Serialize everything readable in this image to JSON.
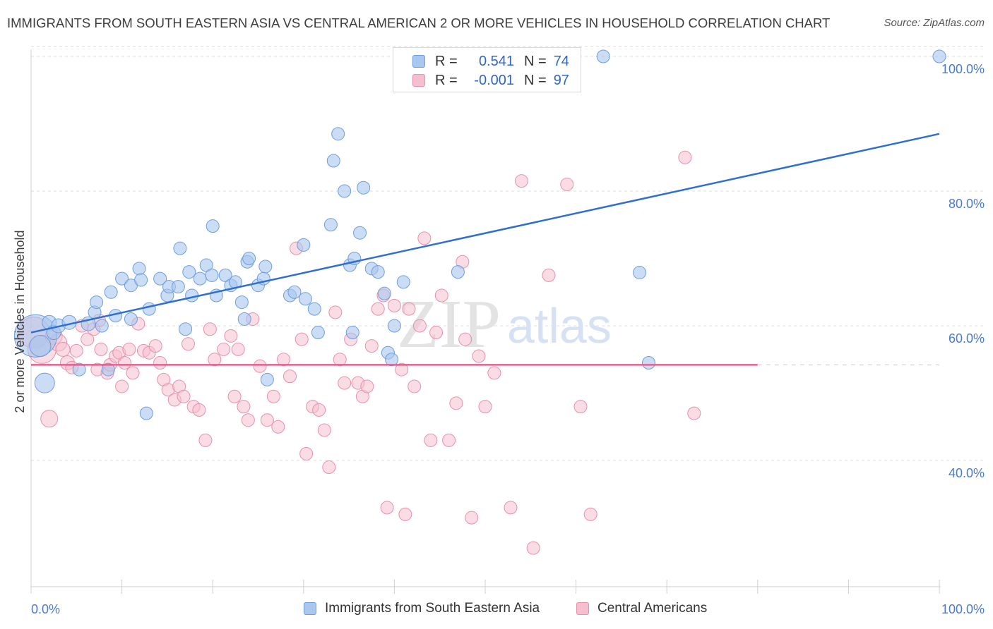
{
  "header": {
    "title": "IMMIGRANTS FROM SOUTH EASTERN ASIA VS CENTRAL AMERICAN 2 OR MORE VEHICLES IN HOUSEHOLD CORRELATION CHART",
    "source": "Source: ZipAtlas.com"
  },
  "legend": {
    "rows": [
      {
        "r_label": "R =",
        "r_value": "0.541",
        "n_label": "N =",
        "n_value": "74"
      },
      {
        "r_label": "R =",
        "r_value": "-0.001",
        "n_label": "N =",
        "n_value": "97"
      }
    ]
  },
  "bottom_legend": {
    "blue_label": "Immigrants from South Eastern Asia",
    "pink_label": "Central Americans"
  },
  "colors": {
    "blue_fill": "#a9c7ef",
    "blue_stroke": "#6d9de0",
    "blue_line": "#2f6fd0",
    "pink_fill": "#f6bfd0",
    "pink_stroke": "#ea8fac",
    "pink_line": "#e0628d",
    "tick_text": "#4a7bd0",
    "grid": "#dedede"
  },
  "watermark": {
    "zip": "ZIP",
    "atlas": "atlas"
  },
  "chart_data": {
    "type": "scatter",
    "title": "IMMIGRANTS FROM SOUTH EASTERN ASIA VS CENTRAL AMERICAN 2 OR MORE VEHICLES IN HOUSEHOLD CORRELATION CHART",
    "xlabel": "",
    "ylabel": "2 or more Vehicles in Household",
    "xlim": [
      0,
      100
    ],
    "ylim": [
      20,
      102
    ],
    "x_tick_labels": [
      "0.0%",
      "100.0%"
    ],
    "y_ticks": [
      40,
      60,
      80,
      100
    ],
    "y_tick_labels": [
      "40.0%",
      "60.0%",
      "80.0%",
      "100.0%"
    ],
    "grid": true,
    "legend_position": "top-center",
    "series": [
      {
        "name": "Immigrants from South Eastern Asia",
        "color": "#a9c7ef",
        "trend": {
          "x": [
            0,
            100
          ],
          "y": [
            59.0,
            88.5
          ]
        },
        "points": [
          [
            0.5,
            58.5
          ],
          [
            1.0,
            57.0
          ],
          [
            1.5,
            51.5
          ],
          [
            2.0,
            60.5
          ],
          [
            2.5,
            59.0
          ],
          [
            3.0,
            60.0
          ],
          [
            4.2,
            60.5
          ],
          [
            5.3,
            53.5
          ],
          [
            6.3,
            60.3
          ],
          [
            7.0,
            62.0
          ],
          [
            7.2,
            63.5
          ],
          [
            7.8,
            60.0
          ],
          [
            8.5,
            53.5
          ],
          [
            8.8,
            65.0
          ],
          [
            9.3,
            61.5
          ],
          [
            10.0,
            67.0
          ],
          [
            11.0,
            61.0
          ],
          [
            11.0,
            66.0
          ],
          [
            11.9,
            68.5
          ],
          [
            12.1,
            66.8
          ],
          [
            12.7,
            47.0
          ],
          [
            13.0,
            62.5
          ],
          [
            14.2,
            67.0
          ],
          [
            15.0,
            64.5
          ],
          [
            15.2,
            65.8
          ],
          [
            16.2,
            65.8
          ],
          [
            16.4,
            71.5
          ],
          [
            17.0,
            59.5
          ],
          [
            17.4,
            68.0
          ],
          [
            17.7,
            64.5
          ],
          [
            18.6,
            67.0
          ],
          [
            19.3,
            69.0
          ],
          [
            19.9,
            67.5
          ],
          [
            20.0,
            74.8
          ],
          [
            20.4,
            64.5
          ],
          [
            21.4,
            67.5
          ],
          [
            22.0,
            66.0
          ],
          [
            22.5,
            66.5
          ],
          [
            23.2,
            63.5
          ],
          [
            23.5,
            61.0
          ],
          [
            23.8,
            69.5
          ],
          [
            24.0,
            70.0
          ],
          [
            25.0,
            66.0
          ],
          [
            25.6,
            67.0
          ],
          [
            25.8,
            68.8
          ],
          [
            26.0,
            52.0
          ],
          [
            28.5,
            64.5
          ],
          [
            29.0,
            65.0
          ],
          [
            30.0,
            72.0
          ],
          [
            30.2,
            64.0
          ],
          [
            31.2,
            62.5
          ],
          [
            31.6,
            59.0
          ],
          [
            33.0,
            75.0
          ],
          [
            33.3,
            84.5
          ],
          [
            33.8,
            88.5
          ],
          [
            34.5,
            80.0
          ],
          [
            35.1,
            69.0
          ],
          [
            35.4,
            59.0
          ],
          [
            35.6,
            70.0
          ],
          [
            36.2,
            73.8
          ],
          [
            36.6,
            80.5
          ],
          [
            37.5,
            68.5
          ],
          [
            38.2,
            68.0
          ],
          [
            38.9,
            64.8
          ],
          [
            39.3,
            56.0
          ],
          [
            39.7,
            55.0
          ],
          [
            40.0,
            60.0
          ],
          [
            41.0,
            66.5
          ],
          [
            42.5,
            100.0
          ],
          [
            47.0,
            68.0
          ],
          [
            63.0,
            100.0
          ],
          [
            67.0,
            67.9
          ],
          [
            68.0,
            54.5
          ],
          [
            100.0,
            100.0
          ]
        ],
        "sizes": [
          30,
          15,
          14,
          10,
          10,
          10,
          10,
          9,
          10,
          9,
          9,
          9,
          9,
          9,
          9,
          9,
          9,
          9,
          9,
          9,
          9,
          9,
          9,
          9,
          9,
          9,
          9,
          9,
          9,
          9,
          9,
          9,
          9,
          9,
          9,
          9,
          9,
          9,
          9,
          9,
          9,
          9,
          9,
          9,
          9,
          9,
          9,
          9,
          9,
          9,
          9,
          9,
          9,
          9,
          9,
          9,
          9,
          9,
          9,
          9,
          9,
          9,
          9,
          9,
          9,
          9,
          9,
          9,
          9,
          9,
          9,
          9,
          9,
          9
        ]
      },
      {
        "name": "Central Americans",
        "color": "#f6bfd0",
        "trend": {
          "x": [
            0,
            80
          ],
          "y": [
            54.2,
            54.2
          ]
        },
        "dashed_extension": {
          "x": [
            80,
            100
          ],
          "y": [
            54.2,
            54.2
          ]
        },
        "points": [
          [
            0.3,
            59.0
          ],
          [
            1.2,
            56.5
          ],
          [
            2.0,
            46.2
          ],
          [
            2.5,
            58.5
          ],
          [
            3.0,
            57.5
          ],
          [
            3.5,
            56.5
          ],
          [
            4.0,
            54.5
          ],
          [
            4.5,
            53.8
          ],
          [
            5.0,
            56.3
          ],
          [
            5.6,
            60.0
          ],
          [
            6.2,
            58.0
          ],
          [
            6.9,
            59.5
          ],
          [
            7.3,
            53.5
          ],
          [
            7.5,
            60.8
          ],
          [
            7.7,
            56.5
          ],
          [
            8.4,
            53.0
          ],
          [
            8.7,
            54.2
          ],
          [
            9.3,
            55.5
          ],
          [
            9.7,
            56.0
          ],
          [
            10.0,
            51.0
          ],
          [
            10.3,
            54.5
          ],
          [
            10.8,
            56.5
          ],
          [
            11.2,
            53.0
          ],
          [
            11.8,
            60.3
          ],
          [
            12.4,
            56.3
          ],
          [
            13.0,
            56.0
          ],
          [
            13.7,
            57.0
          ],
          [
            14.2,
            54.5
          ],
          [
            14.6,
            52.0
          ],
          [
            15.1,
            50.5
          ],
          [
            15.8,
            49.0
          ],
          [
            16.3,
            51.0
          ],
          [
            16.8,
            49.5
          ],
          [
            17.3,
            57.3
          ],
          [
            17.9,
            48.0
          ],
          [
            18.5,
            47.5
          ],
          [
            19.2,
            43.0
          ],
          [
            19.7,
            59.5
          ],
          [
            20.2,
            55.0
          ],
          [
            21.2,
            56.5
          ],
          [
            22.0,
            58.5
          ],
          [
            22.4,
            49.5
          ],
          [
            22.8,
            56.5
          ],
          [
            23.4,
            48.0
          ],
          [
            23.9,
            46.0
          ],
          [
            24.4,
            61.0
          ],
          [
            25.2,
            54.0
          ],
          [
            26.0,
            46.0
          ],
          [
            26.7,
            49.5
          ],
          [
            27.2,
            45.0
          ],
          [
            27.8,
            55.0
          ],
          [
            28.5,
            52.5
          ],
          [
            29.2,
            71.5
          ],
          [
            29.8,
            58.0
          ],
          [
            30.3,
            41.0
          ],
          [
            31.0,
            48.0
          ],
          [
            31.7,
            47.5
          ],
          [
            32.3,
            44.5
          ],
          [
            32.8,
            39.0
          ],
          [
            33.5,
            62.0
          ],
          [
            34.0,
            55.0
          ],
          [
            34.5,
            51.5
          ],
          [
            35.2,
            58.0
          ],
          [
            36.0,
            51.5
          ],
          [
            36.5,
            49.5
          ],
          [
            37.0,
            51.0
          ],
          [
            37.5,
            57.0
          ],
          [
            38.2,
            62.5
          ],
          [
            38.8,
            64.5
          ],
          [
            39.2,
            33.0
          ],
          [
            40.0,
            63.0
          ],
          [
            40.8,
            53.5
          ],
          [
            41.2,
            32.0
          ],
          [
            41.6,
            62.5
          ],
          [
            42.2,
            51.0
          ],
          [
            42.8,
            60.0
          ],
          [
            43.3,
            73.0
          ],
          [
            44.0,
            43.0
          ],
          [
            44.6,
            59.0
          ],
          [
            45.2,
            64.5
          ],
          [
            46.0,
            43.0
          ],
          [
            46.8,
            48.5
          ],
          [
            47.5,
            69.5
          ],
          [
            47.8,
            58.0
          ],
          [
            48.5,
            31.5
          ],
          [
            49.3,
            55.5
          ],
          [
            50.0,
            48.0
          ],
          [
            51.0,
            53.0
          ],
          [
            52.8,
            33.0
          ],
          [
            54.0,
            81.5
          ],
          [
            55.3,
            27.0
          ],
          [
            57.0,
            67.5
          ],
          [
            59.0,
            81.0
          ],
          [
            60.5,
            48.0
          ],
          [
            61.6,
            32.0
          ],
          [
            72.0,
            85.0
          ],
          [
            73.0,
            47.0
          ]
        ],
        "sizes": [
          22,
          20,
          12,
          12,
          12,
          10,
          10,
          9,
          9,
          9,
          9,
          9,
          9,
          9,
          9,
          9,
          9,
          9,
          9,
          9,
          9,
          9,
          9,
          9,
          9,
          9,
          9,
          9,
          9,
          9,
          9,
          9,
          9,
          9,
          9,
          9,
          9,
          9,
          9,
          9,
          9,
          9,
          9,
          9,
          9,
          9,
          9,
          9,
          9,
          9,
          9,
          9,
          9,
          9,
          9,
          9,
          9,
          9,
          9,
          9,
          9,
          9,
          9,
          9,
          9,
          9,
          9,
          9,
          9,
          9,
          9,
          9,
          9,
          9,
          9,
          9,
          9,
          9,
          9,
          9,
          9,
          9,
          9,
          9,
          9,
          9,
          9,
          9,
          9,
          9,
          9,
          9,
          9,
          9,
          9,
          9,
          9
        ]
      }
    ]
  }
}
